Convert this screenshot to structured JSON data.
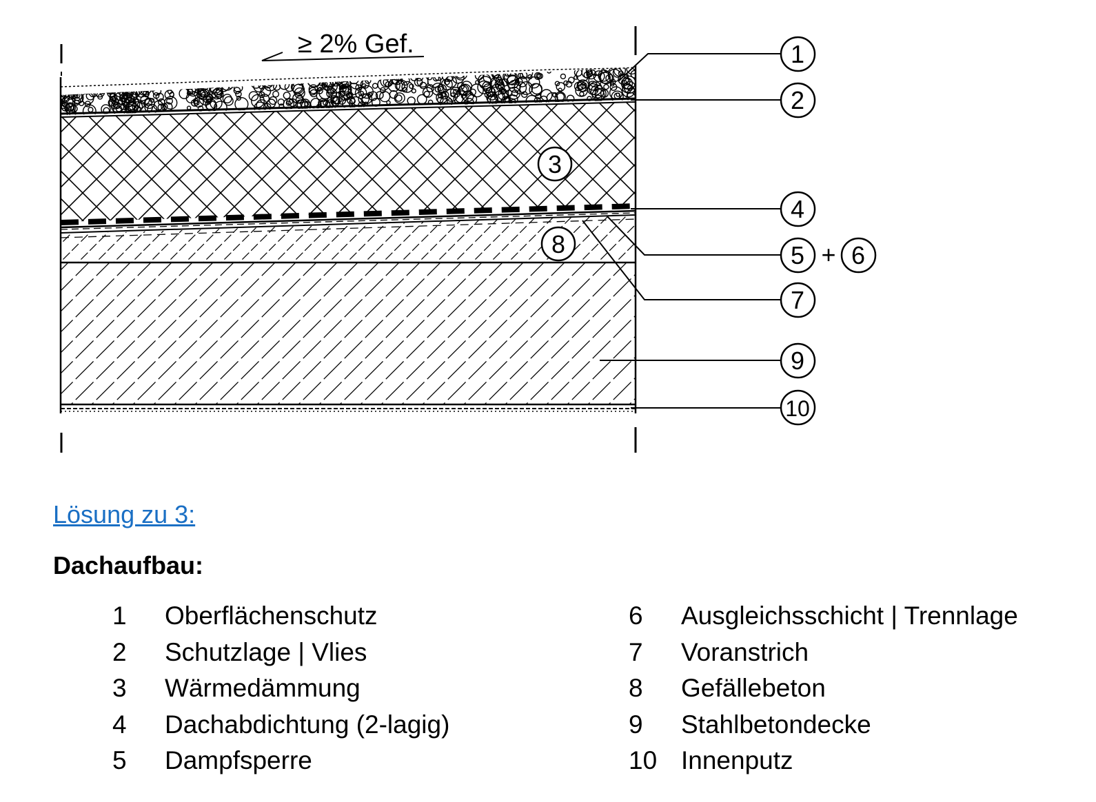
{
  "diagram": {
    "slope_label": "≥  2% Gef.",
    "plus_sign": "+",
    "layer_markers": [
      "3",
      "8"
    ],
    "callouts": [
      {
        "num": "1"
      },
      {
        "num": "2"
      },
      {
        "num": "4"
      },
      {
        "num": "5",
        "extra": "6"
      },
      {
        "num": "7"
      },
      {
        "num": "9"
      },
      {
        "num": "10"
      }
    ]
  },
  "solution": {
    "link_text": "Lösung zu 3:",
    "title": "Dachaufbau:"
  },
  "legend": {
    "left": [
      {
        "num": "1",
        "label": "Oberflächenschutz"
      },
      {
        "num": "2",
        "label": "Schutzlage | Vlies"
      },
      {
        "num": "3",
        "label": "Wärmedämmung"
      },
      {
        "num": "4",
        "label": "Dachabdichtung (2-lagig)"
      },
      {
        "num": "5",
        "label": "Dampfsperre"
      }
    ],
    "right": [
      {
        "num": "6",
        "label": "Ausgleichsschicht | Trennlage"
      },
      {
        "num": "7",
        "label": "Voranstrich"
      },
      {
        "num": "8",
        "label": "Gefällebeton"
      },
      {
        "num": "9",
        "label": "Stahlbetondecke"
      },
      {
        "num": "10",
        "label": "Innenputz"
      }
    ]
  }
}
